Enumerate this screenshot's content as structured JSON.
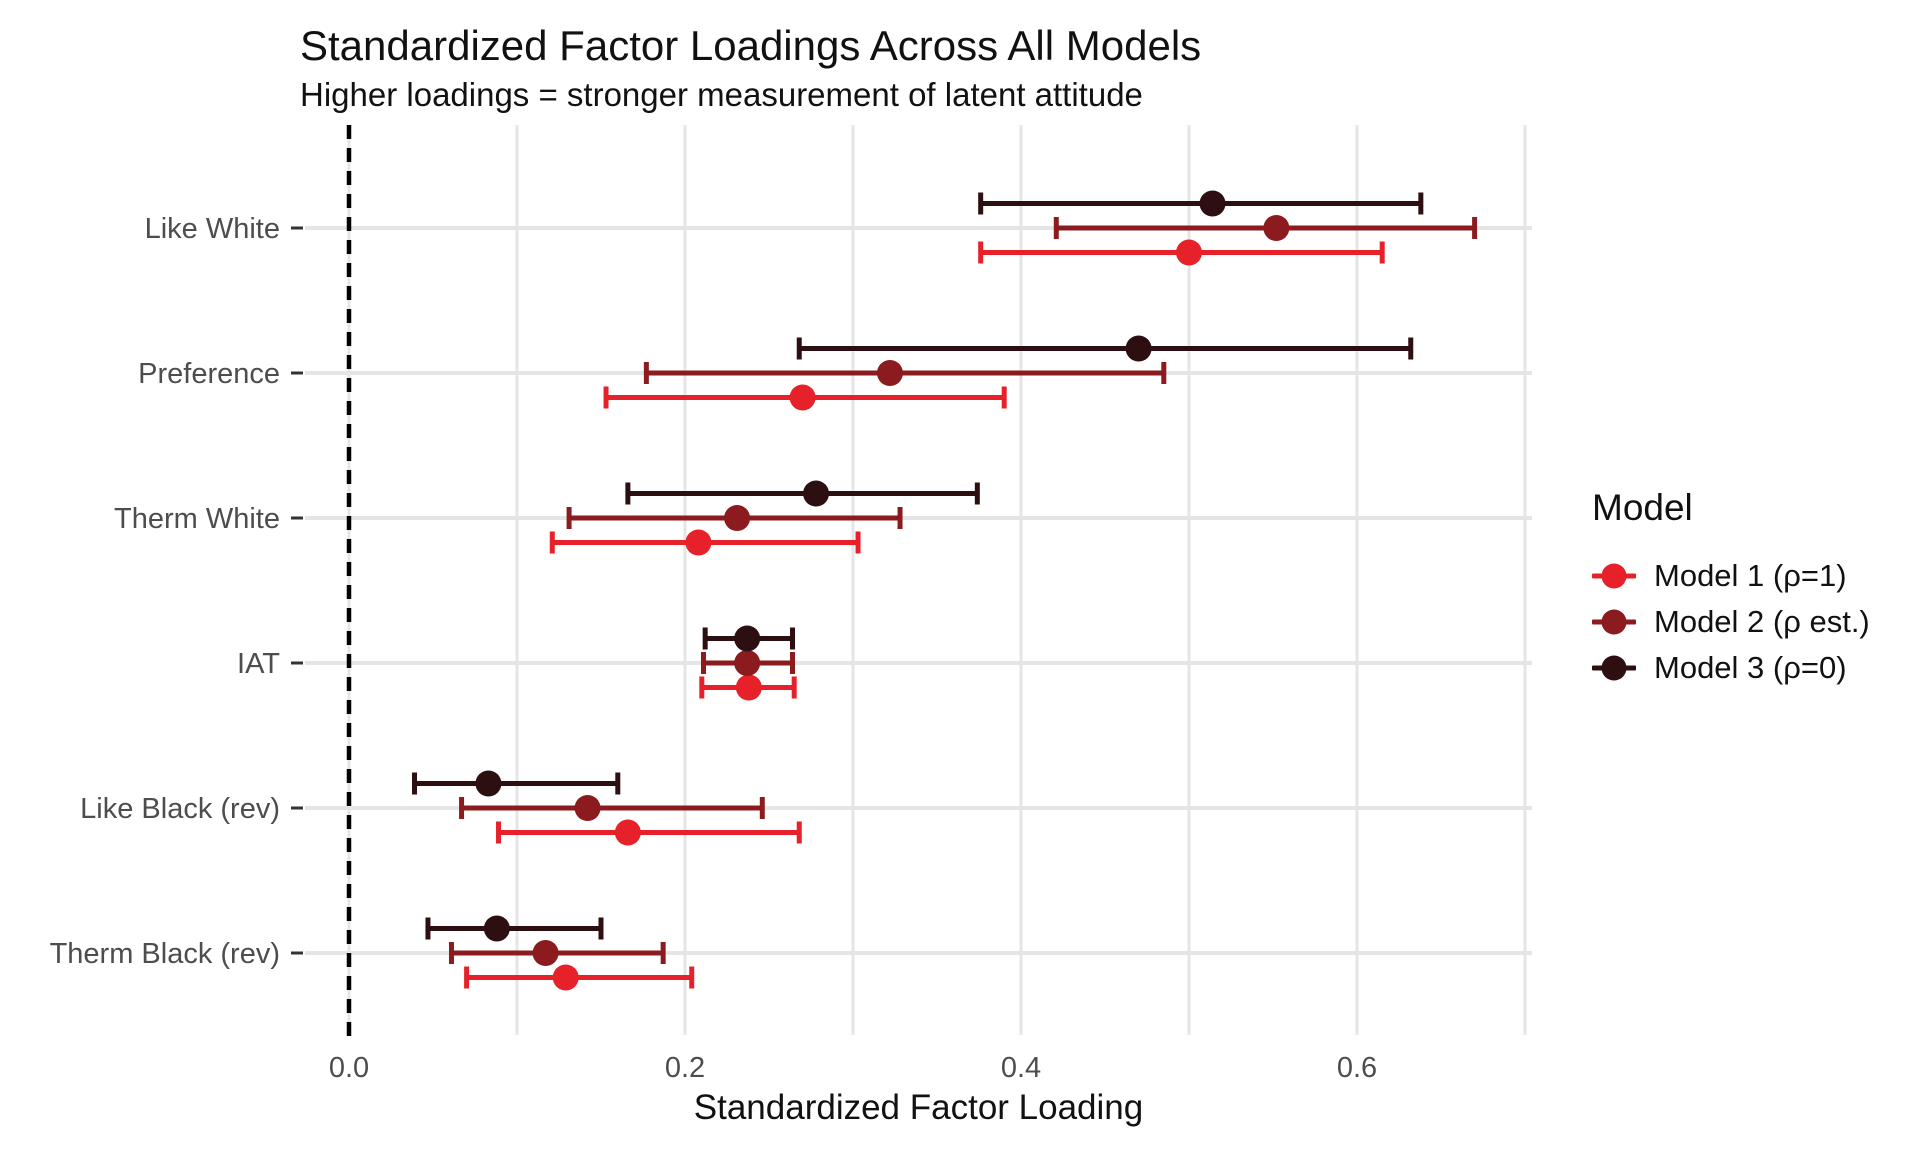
{
  "chart_data": {
    "type": "scatter",
    "subtype": "dot-and-whisker forest plot, horizontal, dodged by model",
    "title": "Standardized Factor Loadings Across All Models",
    "subtitle": "Higher loadings = stronger measurement of latent attitude",
    "xlabel": "Standardized Factor Loading",
    "ylabel": "",
    "xlim": [
      -0.026,
      0.704
    ],
    "x_ticks": [
      0.0,
      0.2,
      0.4,
      0.6
    ],
    "x_tick_labels": [
      "0.0",
      "0.2",
      "0.4",
      "0.6"
    ],
    "x_gridlines": [
      0.0,
      0.1,
      0.2,
      0.3,
      0.4,
      0.5,
      0.6,
      0.7
    ],
    "zero_reference_line": 0.0,
    "grid": "on",
    "categories": [
      "Like White",
      "Preference",
      "Therm White",
      "IAT",
      "Like Black (rev)",
      "Therm Black (rev)"
    ],
    "legend": {
      "title": "Model",
      "position": "right"
    },
    "models": [
      {
        "label": "Model 1 (ρ=1)",
        "color": "#E62129",
        "est": [
          0.5,
          0.27,
          0.208,
          0.238,
          0.166,
          0.129
        ],
        "lo": [
          0.376,
          0.153,
          0.121,
          0.21,
          0.089,
          0.07
        ],
        "hi": [
          0.615,
          0.39,
          0.303,
          0.265,
          0.268,
          0.204
        ]
      },
      {
        "label": "Model 2 (ρ est.)",
        "color": "#8B1B1E",
        "est": [
          0.552,
          0.322,
          0.231,
          0.237,
          0.142,
          0.117
        ],
        "lo": [
          0.421,
          0.177,
          0.131,
          0.211,
          0.067,
          0.061
        ],
        "hi": [
          0.67,
          0.485,
          0.328,
          0.264,
          0.246,
          0.187
        ]
      },
      {
        "label": "Model 3 (ρ=0)",
        "color": "#2D0E11",
        "est": [
          0.514,
          0.47,
          0.278,
          0.237,
          0.083,
          0.088
        ],
        "lo": [
          0.376,
          0.268,
          0.166,
          0.212,
          0.039,
          0.047
        ],
        "hi": [
          0.638,
          0.632,
          0.374,
          0.264,
          0.16,
          0.15
        ]
      }
    ],
    "style_colors": {
      "axis_text": "#4D4D4D",
      "gridline": "#E5E5E5",
      "tick_mark": "#333333",
      "reference_line": "#000000"
    }
  }
}
